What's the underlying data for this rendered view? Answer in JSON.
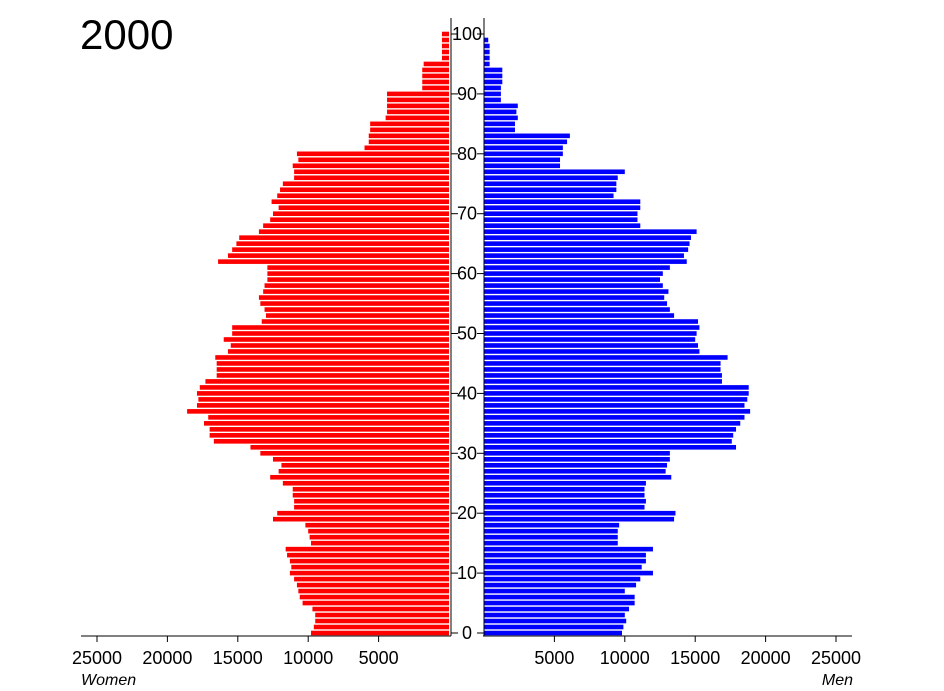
{
  "chart_data": {
    "type": "bar",
    "orientation": "horizontal",
    "title": "2000",
    "xlabel_left": "Women",
    "xlabel_right": "Men",
    "left_ticks": [
      "25000",
      "20000",
      "15000",
      "10000",
      "5000"
    ],
    "right_ticks": [
      "5000",
      "10000",
      "15000",
      "20000",
      "25000"
    ],
    "tick_values": [
      25000,
      20000,
      15000,
      10000,
      5000
    ],
    "age_ticks": [
      "0",
      "10",
      "20",
      "30",
      "40",
      "50",
      "60",
      "70",
      "80",
      "90",
      "100"
    ],
    "age_tick_values": [
      0,
      10,
      20,
      30,
      40,
      50,
      60,
      70,
      80,
      90,
      100
    ],
    "xlim": [
      0,
      26000
    ],
    "ylim": [
      0,
      100
    ],
    "ages": [
      0,
      1,
      2,
      3,
      4,
      5,
      6,
      7,
      8,
      9,
      10,
      11,
      12,
      13,
      14,
      15,
      16,
      17,
      18,
      19,
      20,
      21,
      22,
      23,
      24,
      25,
      26,
      27,
      28,
      29,
      30,
      31,
      32,
      33,
      34,
      35,
      36,
      37,
      38,
      39,
      40,
      41,
      42,
      43,
      44,
      45,
      46,
      47,
      48,
      49,
      50,
      51,
      52,
      53,
      54,
      55,
      56,
      57,
      58,
      59,
      60,
      61,
      62,
      63,
      64,
      65,
      66,
      67,
      68,
      69,
      70,
      71,
      72,
      73,
      74,
      75,
      76,
      77,
      78,
      79,
      80,
      81,
      82,
      83,
      84,
      85,
      86,
      87,
      88,
      89,
      90,
      91,
      92,
      93,
      94,
      95,
      96,
      97,
      98,
      99,
      100
    ],
    "series": [
      {
        "name": "Women",
        "color": "#ff0000",
        "values": [
          9800,
          9600,
          9500,
          9500,
          9700,
          10400,
          10600,
          10700,
          10800,
          11000,
          11300,
          11200,
          11300,
          11500,
          11600,
          9800,
          9900,
          10000,
          10200,
          12500,
          12200,
          11000,
          11000,
          11100,
          11100,
          11800,
          12700,
          12100,
          11900,
          12500,
          13400,
          14100,
          16700,
          17000,
          17000,
          17400,
          17100,
          18600,
          17900,
          17800,
          17900,
          17700,
          17300,
          16500,
          16500,
          16500,
          16600,
          15700,
          15500,
          16000,
          15400,
          15400,
          13300,
          13000,
          13100,
          13400,
          13500,
          13200,
          13100,
          12900,
          12900,
          12900,
          16400,
          15700,
          15400,
          15100,
          14900,
          13500,
          13200,
          12700,
          12500,
          12100,
          12600,
          12200,
          12000,
          11800,
          11000,
          11000,
          11100,
          10700,
          10800,
          6000,
          5700,
          5700,
          5600,
          5600,
          4500,
          4400,
          4400,
          4400,
          4400,
          1900,
          1900,
          1900,
          1900,
          1800,
          500,
          500,
          500,
          500,
          500
        ]
      },
      {
        "name": "Men",
        "color": "#0000ff",
        "values": [
          9800,
          9900,
          10100,
          10000,
          10300,
          10700,
          10700,
          10000,
          10800,
          11100,
          12000,
          11200,
          11500,
          11500,
          12000,
          9500,
          9500,
          9500,
          9600,
          13500,
          13600,
          11400,
          11500,
          11400,
          11400,
          11500,
          13300,
          12900,
          13000,
          13200,
          13200,
          17900,
          17600,
          17700,
          17900,
          18200,
          18500,
          18900,
          18500,
          18700,
          18800,
          18800,
          16900,
          16900,
          16800,
          16800,
          17300,
          15300,
          15200,
          15000,
          15100,
          15300,
          15200,
          13500,
          13200,
          13000,
          12800,
          13100,
          12700,
          12500,
          12700,
          13200,
          14400,
          14200,
          14500,
          14600,
          14700,
          15100,
          11100,
          10900,
          10900,
          11100,
          11100,
          9200,
          9400,
          9400,
          9500,
          10000,
          5400,
          5400,
          5600,
          5600,
          5900,
          6100,
          2200,
          2200,
          2400,
          2300,
          2400,
          1200,
          1200,
          1200,
          1300,
          1300,
          1300,
          400,
          400,
          400,
          400,
          300,
          0
        ]
      }
    ],
    "grid": false,
    "legend": "none"
  }
}
